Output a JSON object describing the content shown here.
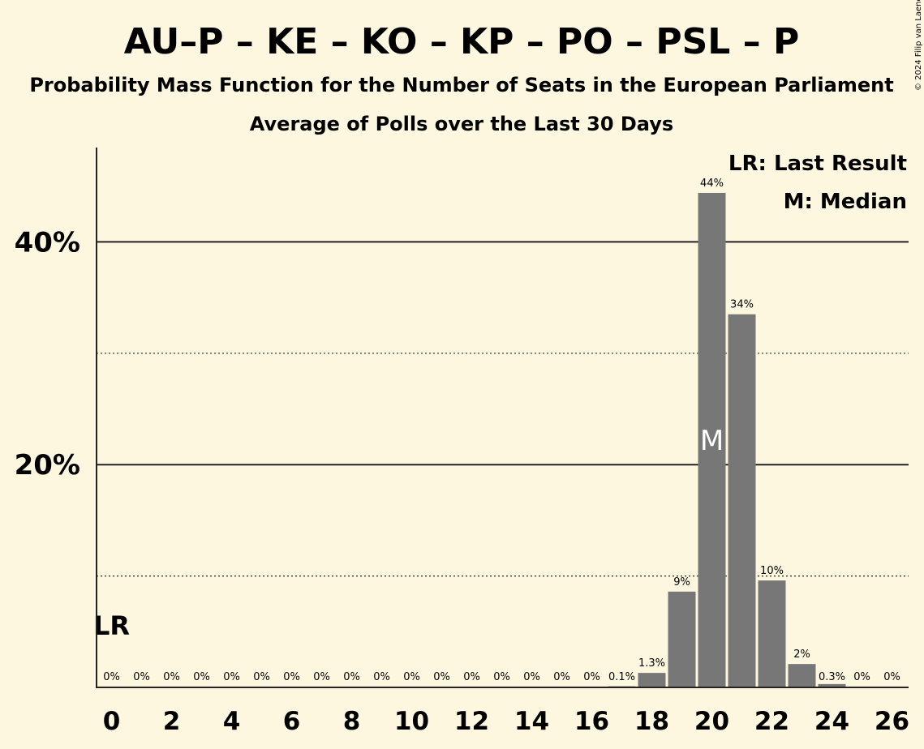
{
  "chart_data": {
    "type": "bar",
    "title": "AU–P – KE – KO – KP – PO – PSL – P",
    "subtitle": "Probability Mass Function for the Number of Seats in the European Parliament",
    "subtitle2": "Average of Polls over the Last 30 Days",
    "copyright": "© 2024 Filip van Laenen",
    "legend": [
      "LR: Last Result",
      "M: Median"
    ],
    "legend_position": "top-right",
    "ylim": [
      0,
      48
    ],
    "yticks": [
      {
        "value": 20,
        "label": "20%"
      },
      {
        "value": 40,
        "label": "40%"
      }
    ],
    "ygrid_dotted": [
      10,
      30
    ],
    "x": [
      0,
      1,
      2,
      3,
      4,
      5,
      6,
      7,
      8,
      9,
      10,
      11,
      12,
      13,
      14,
      15,
      16,
      17,
      18,
      19,
      20,
      21,
      22,
      23,
      24,
      25,
      26
    ],
    "xtick_labels": [
      "0",
      "2",
      "4",
      "6",
      "8",
      "10",
      "12",
      "14",
      "16",
      "18",
      "20",
      "22",
      "24",
      "26"
    ],
    "values": [
      0,
      0,
      0,
      0,
      0,
      0,
      0,
      0,
      0,
      0,
      0,
      0,
      0,
      0,
      0,
      0,
      0,
      0.1,
      1.3,
      8.6,
      44.4,
      33.5,
      9.6,
      2.1,
      0.3,
      0,
      0
    ],
    "labels": [
      "0%",
      "0%",
      "0%",
      "0%",
      "0%",
      "0%",
      "0%",
      "0%",
      "0%",
      "0%",
      "0%",
      "0%",
      "0%",
      "0%",
      "0%",
      "0%",
      "0%",
      "0.1%",
      "1.3%",
      "9%",
      "44%",
      "34%",
      "10%",
      "2%",
      "0.3%",
      "0%",
      "0%"
    ],
    "last_result": {
      "x": 0,
      "label": "LR"
    },
    "median": {
      "x": 20,
      "label": "M"
    },
    "bar_color": "#777777",
    "background": "#fdf7e0"
  }
}
